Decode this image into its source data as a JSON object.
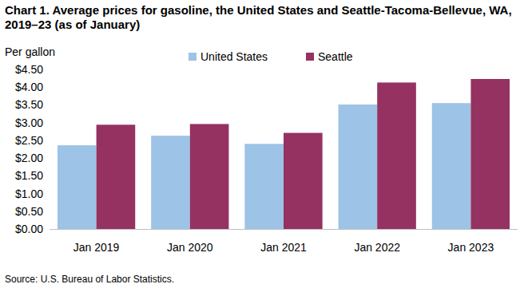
{
  "chart_data": {
    "type": "bar",
    "title": "Chart 1. Average prices for gasoline, the United States and Seattle-Tacoma-Bellevue, WA, 2019–23 (as of January)",
    "y_label": "Per gallon",
    "source": "Source: U.S. Bureau of Labor Statistics.",
    "categories": [
      "Jan 2019",
      "Jan 2020",
      "Jan 2021",
      "Jan 2022",
      "Jan 2023"
    ],
    "series": [
      {
        "name": "United States",
        "color": "#9dc3e6",
        "values": [
          2.36,
          2.63,
          2.4,
          3.51,
          3.55
        ]
      },
      {
        "name": "Seattle",
        "color": "#953262",
        "values": [
          2.94,
          2.96,
          2.71,
          4.13,
          4.23
        ]
      }
    ],
    "ylim": [
      0,
      4.5
    ],
    "yticks": [
      {
        "value": 0,
        "label": "$0.00"
      },
      {
        "value": 0.5,
        "label": "$0.50"
      },
      {
        "value": 1,
        "label": "$1.00"
      },
      {
        "value": 1.5,
        "label": "$1.50"
      },
      {
        "value": 2,
        "label": "$2.00"
      },
      {
        "value": 2.5,
        "label": "$2.50"
      },
      {
        "value": 3,
        "label": "$3.00"
      },
      {
        "value": 3.5,
        "label": "$3.50"
      },
      {
        "value": 4,
        "label": "$4.00"
      },
      {
        "value": 4.5,
        "label": "$4.50"
      }
    ],
    "grid": false,
    "legend": "top"
  }
}
